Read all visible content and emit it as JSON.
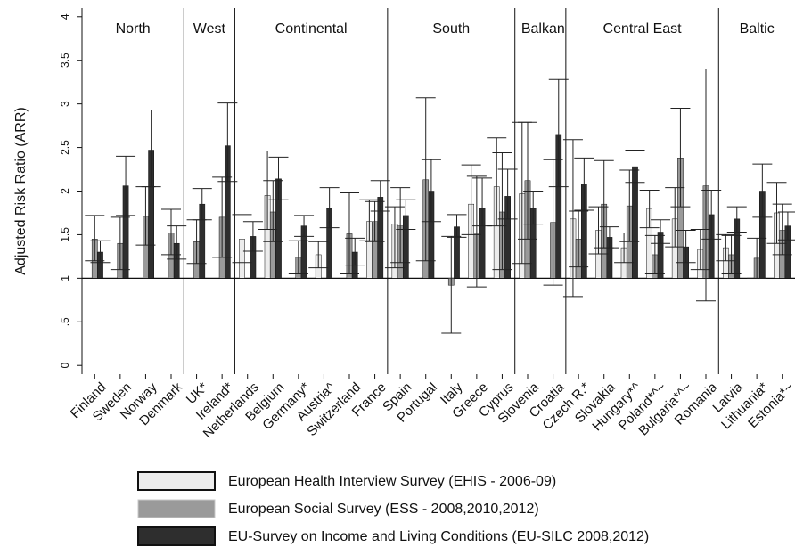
{
  "chart_data": {
    "type": "bar",
    "title": "",
    "ylabel": "Adjusted Risk Ratio (ARR)",
    "xlabel": "",
    "ylim": [
      -0.1,
      4.1
    ],
    "baseline": 1,
    "yticks": [
      0,
      0.5,
      1,
      1.5,
      2,
      2.5,
      3,
      3.5,
      4
    ],
    "ytick_labels": [
      "0",
      ".5",
      "1",
      "1.5",
      "2",
      "2.5",
      "3",
      "3.5",
      "4"
    ],
    "grid": false,
    "legend_position": "bottom",
    "series": [
      {
        "name": "European Health Interview Survey (EHIS - 2006-09)",
        "color": "#ececec"
      },
      {
        "name": "European Social Survey (ESS - 2008,2010,2012)",
        "color": "#9a9a9a"
      },
      {
        "name": "EU-Survey on Income and Living Conditions (EU-SILC 2008,2012)",
        "color": "#2e2e2e"
      }
    ],
    "regions": [
      {
        "name": "North",
        "countries": [
          "Finland",
          "Sweden",
          "Norway",
          "Denmark"
        ]
      },
      {
        "name": "West",
        "countries": [
          "UK*",
          "Ireland*"
        ]
      },
      {
        "name": "Continental",
        "countries": [
          "Netherlands",
          "Belgium",
          "Germany*",
          "Austria^",
          "Switzerland",
          "France"
        ]
      },
      {
        "name": "South",
        "countries": [
          "Spain",
          "Portugal",
          "Italy",
          "Greece",
          "Cyprus"
        ]
      },
      {
        "name": "Balkan",
        "countries": [
          "Slovenia",
          "Croatia"
        ]
      },
      {
        "name": "Central East",
        "countries": [
          "Czech R.*",
          "Slovakia",
          "Hungary*^",
          "Poland*^~",
          "Bulgaria*^~",
          "Romania"
        ]
      },
      {
        "name": "Baltic",
        "countries": [
          "Latvia",
          "Lithuania*",
          "Estonia*~"
        ]
      }
    ],
    "countries": [
      {
        "name": "Finland",
        "values": [
          null,
          1.45,
          1.3
        ],
        "ci": [
          null,
          [
            1.2,
            1.72
          ],
          [
            1.18,
            1.43
          ]
        ]
      },
      {
        "name": "Sweden",
        "values": [
          null,
          1.4,
          2.06
        ],
        "ci": [
          null,
          [
            1.1,
            1.7
          ],
          [
            1.72,
            2.4
          ]
        ]
      },
      {
        "name": "Norway",
        "values": [
          null,
          1.71,
          2.47
        ],
        "ci": [
          null,
          [
            1.38,
            2.05
          ],
          [
            2.05,
            2.93
          ]
        ]
      },
      {
        "name": "Denmark",
        "values": [
          null,
          1.52,
          1.4
        ],
        "ci": [
          null,
          [
            1.27,
            1.79
          ],
          [
            1.22,
            1.6
          ]
        ]
      },
      {
        "name": "UK*",
        "values": [
          null,
          1.42,
          1.85
        ],
        "ci": [
          null,
          [
            1.17,
            1.67
          ],
          [
            1.67,
            2.03
          ]
        ]
      },
      {
        "name": "Ireland*",
        "values": [
          null,
          1.7,
          2.52
        ],
        "ci": [
          null,
          [
            1.24,
            2.16
          ],
          [
            2.11,
            3.01
          ]
        ]
      },
      {
        "name": "Netherlands",
        "values": [
          1.45,
          null,
          1.48
        ],
        "ci": [
          [
            1.18,
            1.73
          ],
          null,
          [
            1.31,
            1.65
          ]
        ]
      },
      {
        "name": "Belgium",
        "values": [
          1.95,
          1.76,
          2.14
        ],
        "ci": [
          [
            1.56,
            2.46
          ],
          [
            1.42,
            2.12
          ],
          [
            1.9,
            2.39
          ]
        ]
      },
      {
        "name": "Germany*",
        "values": [
          null,
          1.24,
          1.6
        ],
        "ci": [
          null,
          [
            1.05,
            1.43
          ],
          [
            1.48,
            1.72
          ]
        ]
      },
      {
        "name": "Austria^",
        "values": [
          1.27,
          null,
          1.8
        ],
        "ci": [
          [
            1.12,
            1.42
          ],
          null,
          [
            1.58,
            2.04
          ]
        ]
      },
      {
        "name": "Switzerland",
        "values": [
          null,
          1.51,
          1.3
        ],
        "ci": [
          null,
          [
            1.05,
            1.98
          ],
          [
            1.15,
            1.46
          ]
        ]
      },
      {
        "name": "France",
        "values": [
          1.65,
          1.65,
          1.93
        ],
        "ci": [
          [
            1.43,
            1.9
          ],
          [
            1.42,
            1.88
          ],
          [
            1.77,
            2.12
          ]
        ]
      },
      {
        "name": "Spain",
        "values": [
          1.62,
          1.6,
          1.72
        ],
        "ci": [
          [
            1.12,
            1.82
          ],
          [
            1.18,
            2.04
          ],
          [
            1.56,
            1.9
          ]
        ]
      },
      {
        "name": "Portugal",
        "values": [
          null,
          2.13,
          2.0
        ],
        "ci": [
          null,
          [
            1.2,
            3.07
          ],
          [
            1.65,
            2.36
          ]
        ]
      },
      {
        "name": "Italy",
        "values": [
          null,
          0.92,
          1.59
        ],
        "ci": [
          null,
          [
            0.37,
            1.48
          ],
          [
            1.47,
            1.73
          ]
        ]
      },
      {
        "name": "Greece",
        "values": [
          1.85,
          1.52,
          1.8
        ],
        "ci": [
          [
            1.5,
            2.3
          ],
          [
            0.9,
            2.17
          ],
          [
            1.6,
            2.15
          ]
        ]
      },
      {
        "name": "Cyprus",
        "values": [
          2.05,
          1.76,
          1.94
        ],
        "ci": [
          [
            1.6,
            2.61
          ],
          [
            1.1,
            2.44
          ],
          [
            1.68,
            2.25
          ]
        ]
      },
      {
        "name": "Slovenia",
        "values": [
          1.97,
          2.12,
          1.8
        ],
        "ci": [
          [
            1.17,
            2.79
          ],
          [
            1.45,
            2.79
          ],
          [
            1.62,
            2.0
          ]
        ]
      },
      {
        "name": "Croatia",
        "values": [
          null,
          1.64,
          2.65
        ],
        "ci": [
          null,
          [
            0.92,
            2.36
          ],
          [
            2.05,
            3.28
          ]
        ]
      },
      {
        "name": "Czech R.*",
        "values": [
          1.68,
          1.45,
          2.08
        ],
        "ci": [
          [
            0.79,
            2.59
          ],
          [
            1.13,
            1.77
          ],
          [
            1.78,
            2.38
          ]
        ]
      },
      {
        "name": "Slovakia",
        "values": [
          1.55,
          1.85,
          1.47
        ],
        "ci": [
          [
            1.28,
            1.82
          ],
          [
            1.35,
            2.35
          ],
          [
            1.35,
            1.59
          ]
        ]
      },
      {
        "name": "Hungary*^",
        "values": [
          1.35,
          1.83,
          2.28
        ],
        "ci": [
          [
            1.18,
            1.52
          ],
          [
            1.42,
            2.24
          ],
          [
            2.1,
            2.47
          ]
        ]
      },
      {
        "name": "Poland*^~",
        "values": [
          1.8,
          1.27,
          1.53
        ],
        "ci": [
          [
            1.58,
            2.01
          ],
          [
            1.05,
            1.49
          ],
          [
            1.4,
            1.67
          ]
        ]
      },
      {
        "name": "Bulgaria*^~",
        "values": [
          1.68,
          2.38,
          1.36
        ],
        "ci": [
          [
            1.36,
            2.04
          ],
          [
            1.82,
            2.95
          ],
          [
            1.18,
            1.55
          ]
        ]
      },
      {
        "name": "Romania",
        "values": [
          1.33,
          2.06,
          1.73
        ],
        "ci": [
          [
            1.1,
            1.56
          ],
          [
            0.74,
            3.4
          ],
          [
            1.45,
            2.01
          ]
        ]
      },
      {
        "name": "Latvia",
        "values": [
          1.35,
          1.27,
          1.68
        ],
        "ci": [
          [
            1.2,
            1.5
          ],
          [
            1.05,
            1.49
          ],
          [
            1.53,
            1.82
          ]
        ]
      },
      {
        "name": "Lithuania*",
        "values": [
          null,
          1.23,
          2.0
        ],
        "ci": [
          null,
          [
            1.0,
            1.46
          ],
          [
            1.7,
            2.31
          ]
        ]
      },
      {
        "name": "Estonia*~",
        "values": [
          1.75,
          1.55,
          1.6
        ],
        "ci": [
          [
            1.4,
            2.1
          ],
          [
            1.27,
            1.85
          ],
          [
            1.44,
            1.76
          ]
        ]
      }
    ]
  }
}
